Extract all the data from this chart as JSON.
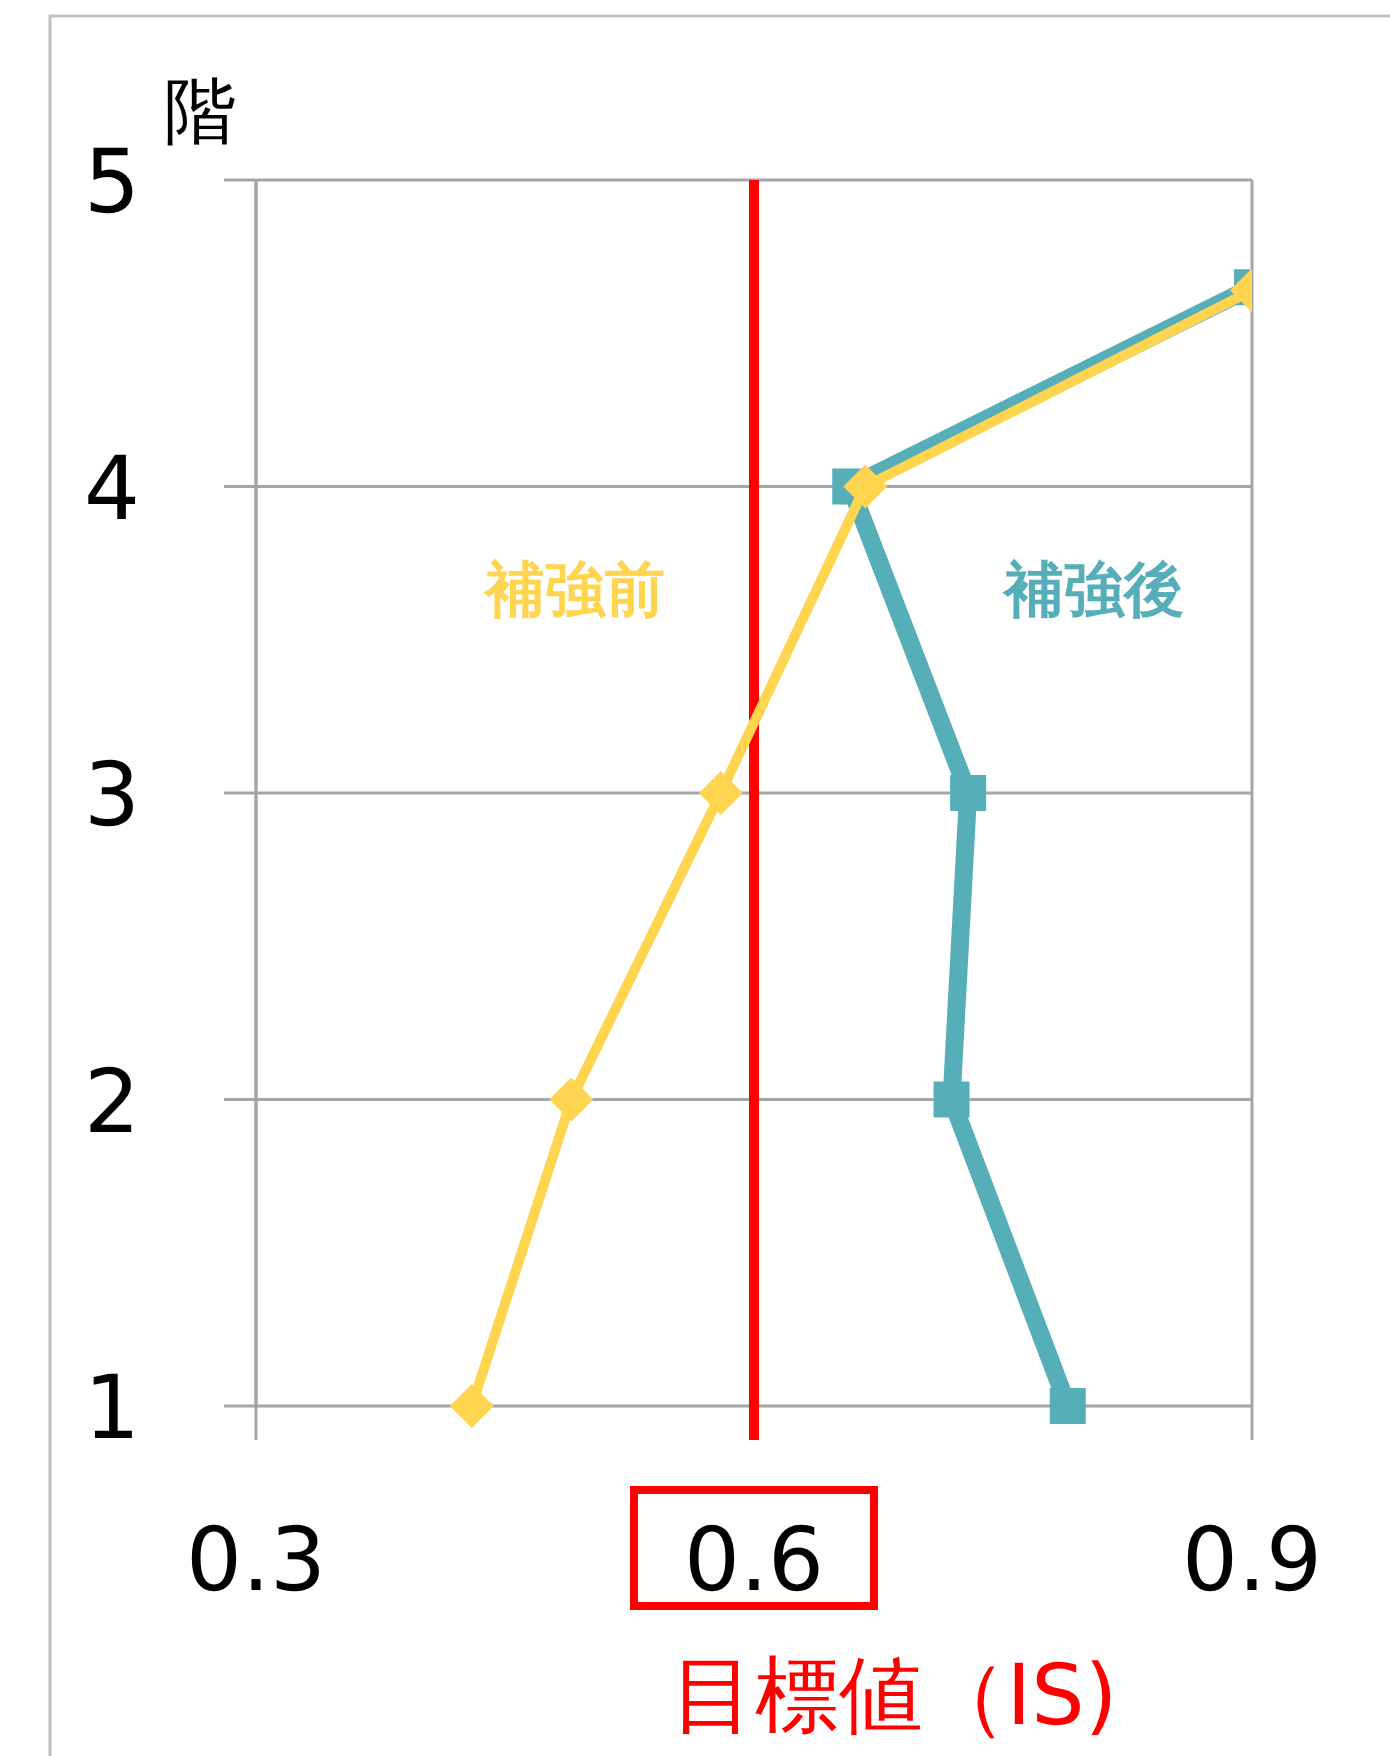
{
  "chart_data": {
    "type": "line",
    "xlabel": "目標値（IS)",
    "ylabel": "階",
    "xlim": [
      0.3,
      0.9
    ],
    "ylim": [
      1,
      5
    ],
    "xticks": [
      0.3,
      0.6,
      0.9
    ],
    "yticks": [
      1,
      2,
      3,
      4,
      5
    ],
    "grid": true,
    "ref_lines": [
      {
        "axis": "x",
        "value": 0.6,
        "color": "#ff0000"
      }
    ],
    "series": [
      {
        "name": "補強前",
        "color": "#ffd44f",
        "marker": "diamond",
        "x": [
          0.43,
          0.49,
          0.58,
          0.667,
          0.9
        ],
        "values": [
          1,
          2,
          3,
          4,
          4.64
        ]
      },
      {
        "name": "補強後",
        "color": "#56aeb9",
        "marker": "square",
        "x": [
          0.789,
          0.719,
          0.729,
          0.658,
          0.9
        ],
        "values": [
          1,
          2,
          3,
          4,
          4.65
        ]
      }
    ]
  }
}
